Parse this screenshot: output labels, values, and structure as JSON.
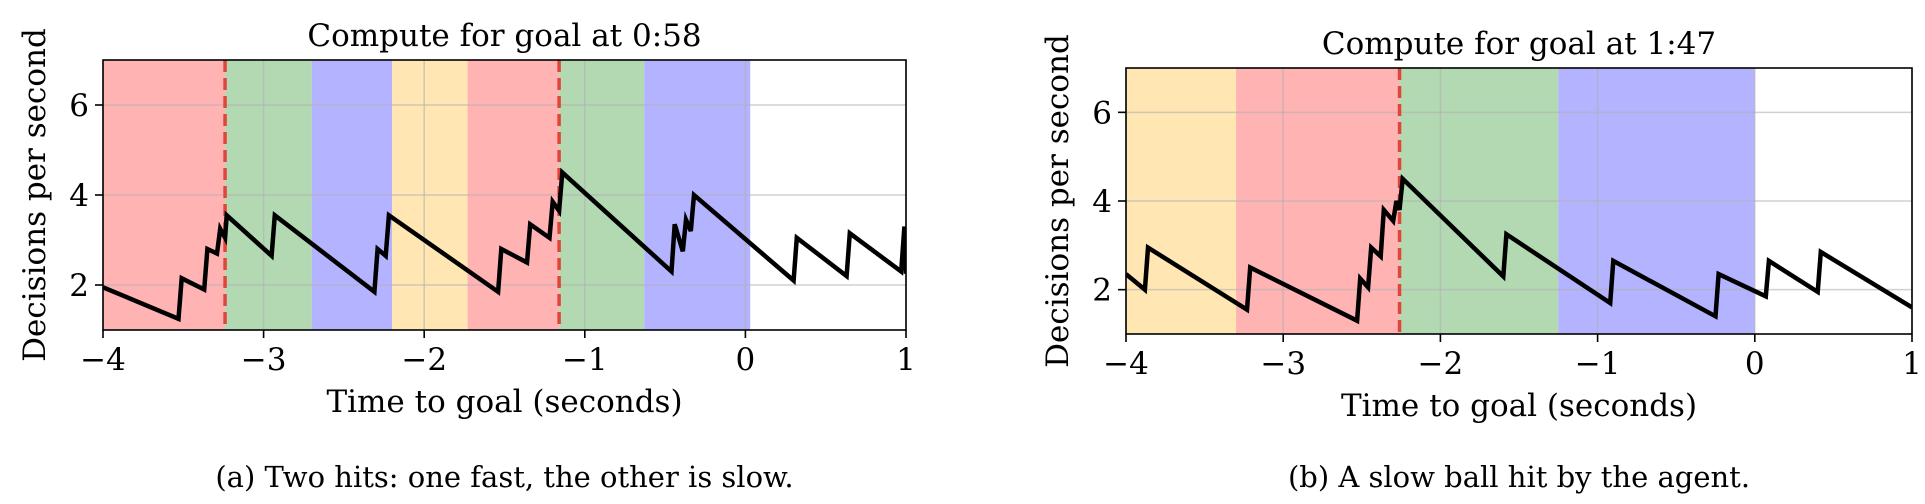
{
  "chart_data": [
    {
      "type": "line",
      "title": "Compute for goal at 0:58",
      "xlabel": "Time to goal (seconds)",
      "ylabel": "Decisions per second",
      "caption": "(a) Two hits: one fast, the other is slow.",
      "xlim": [
        -4,
        1
      ],
      "ylim": [
        1,
        7
      ],
      "xticks": [
        -4,
        -3,
        -2,
        -1,
        0,
        1
      ],
      "xtick_labels": [
        "−4",
        "−3",
        "−2",
        "−1",
        "0",
        "1"
      ],
      "yticks": [
        2,
        4,
        6
      ],
      "ytick_labels": [
        "2",
        "4",
        "6"
      ],
      "grid": true,
      "bands": [
        {
          "x0": -4.0,
          "x1": -3.24,
          "color": "#ff9999"
        },
        {
          "x0": -3.24,
          "x1": -2.7,
          "color": "#99cc99"
        },
        {
          "x0": -2.7,
          "x1": -2.2,
          "color": "#9999ff"
        },
        {
          "x0": -2.2,
          "x1": -1.73,
          "color": "#ffdd99"
        },
        {
          "x0": -1.73,
          "x1": -1.16,
          "color": "#ff9999"
        },
        {
          "x0": -1.16,
          "x1": -0.63,
          "color": "#99cc99"
        },
        {
          "x0": -0.63,
          "x1": 0.03,
          "color": "#9999ff"
        }
      ],
      "event_lines": [
        -3.24,
        -1.16
      ],
      "series": [
        {
          "x": [
            -4.0,
            -3.53,
            -3.51,
            -3.37,
            -3.35,
            -3.29,
            -3.27,
            -3.24,
            -3.23,
            -2.95,
            -2.93,
            -2.31,
            -2.29,
            -2.24,
            -2.22,
            -1.54,
            -1.52,
            -1.36,
            -1.34,
            -1.22,
            -1.2,
            -1.16,
            -1.14,
            -0.46,
            -0.44,
            -0.39,
            -0.37,
            -0.34,
            -0.32,
            0.3,
            0.32,
            0.63,
            0.65,
            0.97,
            0.99,
            1.0
          ],
          "y": [
            1.95,
            1.25,
            2.15,
            1.9,
            2.8,
            2.7,
            3.25,
            3.05,
            3.55,
            2.65,
            3.55,
            1.85,
            2.8,
            2.65,
            3.55,
            1.85,
            2.8,
            2.5,
            3.35,
            3.05,
            3.85,
            3.65,
            4.5,
            2.3,
            3.35,
            2.75,
            3.45,
            3.2,
            4.0,
            2.1,
            3.05,
            2.2,
            3.15,
            2.3,
            3.3,
            2.25
          ]
        }
      ]
    },
    {
      "type": "line",
      "title": "Compute for goal at 1:47",
      "xlabel": "Time to goal (seconds)",
      "ylabel": "Decisions per second",
      "caption": "(b) A slow ball hit by the agent.",
      "xlim": [
        -4,
        1
      ],
      "ylim": [
        1,
        7
      ],
      "xticks": [
        -4,
        -3,
        -2,
        -1,
        0,
        1
      ],
      "xtick_labels": [
        "−4",
        "−3",
        "−2",
        "−1",
        "0",
        "1"
      ],
      "yticks": [
        2,
        4,
        6
      ],
      "ytick_labels": [
        "2",
        "4",
        "6"
      ],
      "grid": true,
      "bands": [
        {
          "x0": -4.0,
          "x1": -3.3,
          "color": "#ffdd99"
        },
        {
          "x0": -3.3,
          "x1": -2.26,
          "color": "#ff9999"
        },
        {
          "x0": -2.26,
          "x1": -1.25,
          "color": "#99cc99"
        },
        {
          "x0": -1.25,
          "x1": 0.0,
          "color": "#9999ff"
        }
      ],
      "event_lines": [
        -2.26
      ],
      "series": [
        {
          "x": [
            -4.0,
            -3.88,
            -3.86,
            -3.23,
            -3.21,
            -2.53,
            -2.51,
            -2.46,
            -2.44,
            -2.38,
            -2.36,
            -2.3,
            -2.28,
            -2.26,
            -2.24,
            -1.6,
            -1.58,
            -0.92,
            -0.9,
            -0.25,
            -0.23,
            0.07,
            0.09,
            0.4,
            0.42,
            1.0
          ],
          "y": [
            2.35,
            2.0,
            2.95,
            1.55,
            2.5,
            1.3,
            2.25,
            2.05,
            2.95,
            2.75,
            3.8,
            3.55,
            4.0,
            3.8,
            4.5,
            2.3,
            3.25,
            1.7,
            2.65,
            1.4,
            2.35,
            1.85,
            2.65,
            1.95,
            2.85,
            1.6
          ]
        }
      ]
    }
  ]
}
